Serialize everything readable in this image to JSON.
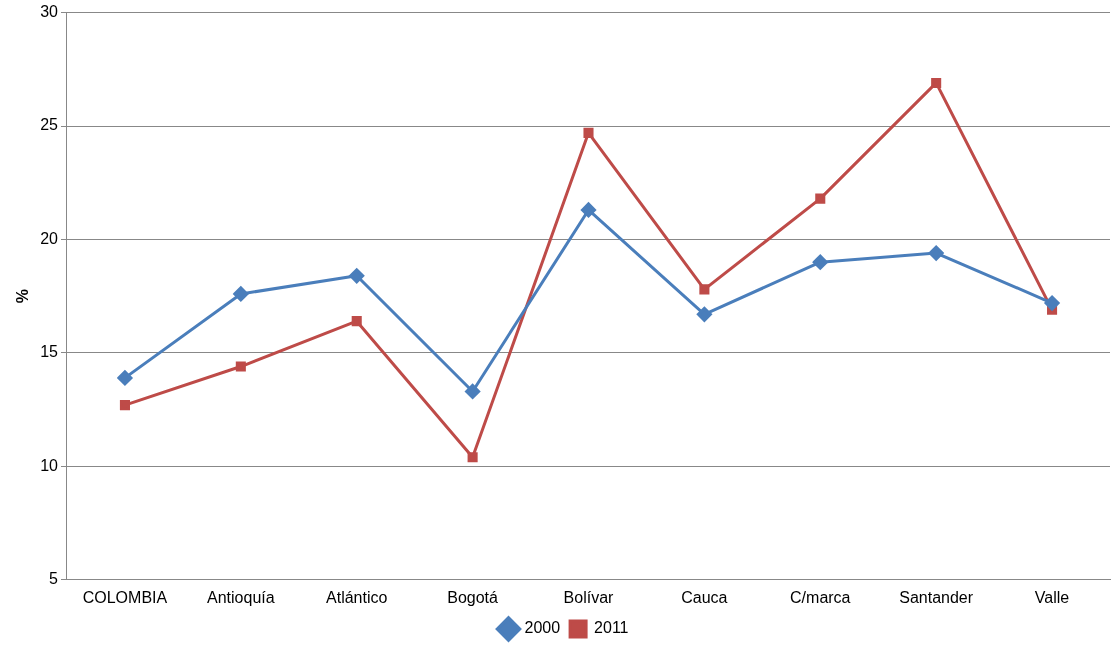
{
  "chart_data": {
    "type": "line",
    "ylabel": "%",
    "categories": [
      "COLOMBIA",
      "Antioquía",
      "Atlántico",
      "Bogotá",
      "Bolívar",
      "Cauca",
      "C/marca",
      "Santander",
      "Valle"
    ],
    "series": [
      {
        "name": "2000",
        "color": "#4a7ebb",
        "marker": "diamond",
        "values": [
          13.9,
          17.6,
          18.4,
          13.3,
          21.3,
          16.7,
          19.0,
          19.4,
          17.2
        ]
      },
      {
        "name": "2011",
        "color": "#be4b48",
        "marker": "square",
        "values": [
          12.7,
          14.4,
          16.4,
          10.4,
          24.7,
          17.8,
          21.8,
          26.9,
          16.9
        ]
      }
    ],
    "ylim": [
      5,
      30
    ],
    "yticks": [
      5,
      10,
      15,
      20,
      25,
      30
    ],
    "grid": "y",
    "legend": "bottom",
    "line_style": "solid"
  }
}
